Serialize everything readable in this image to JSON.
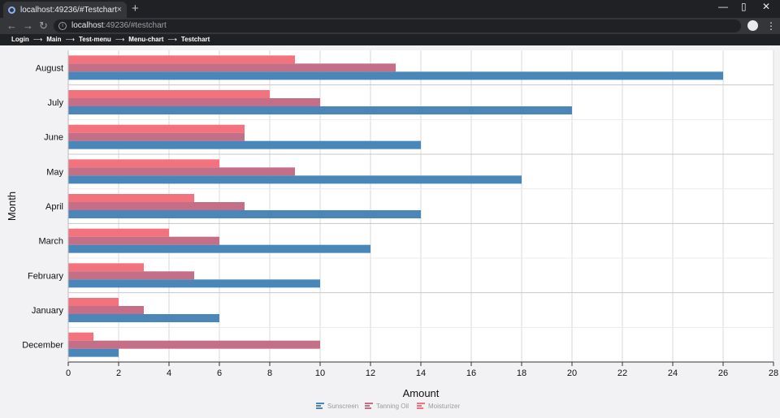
{
  "browser": {
    "tab_title": "localhost:49236/#Testchart",
    "tab_close": "×",
    "new_tab": "+",
    "url_host": "localhost",
    "url_rest": ":49236/#testchart",
    "back": "←",
    "forward": "→",
    "reload": "↻",
    "minimize": "—",
    "maximize": "▯",
    "close": "✕",
    "star": "☆",
    "menu": "⋮"
  },
  "breadcrumb": {
    "items": [
      "Login",
      "Main",
      "Test-menu",
      "Menu-chart",
      "Testchart"
    ],
    "separator": "⟶"
  },
  "colors": {
    "sunscreen": "#4a86b8",
    "tanning_oil": "#c46e87",
    "moisturizer": "#f2727e"
  },
  "chart_data": {
    "type": "bar",
    "orientation": "horizontal",
    "categories": [
      "August",
      "July",
      "June",
      "May",
      "April",
      "March",
      "February",
      "January",
      "December"
    ],
    "series": [
      {
        "name": "Sunscreen",
        "values": [
          26,
          20,
          14,
          18,
          14,
          12,
          10,
          6,
          2
        ]
      },
      {
        "name": "Tanning Oil",
        "values": [
          13,
          10,
          7,
          9,
          7,
          6,
          5,
          3,
          10
        ]
      },
      {
        "name": "Moisturizer",
        "values": [
          9,
          8,
          7,
          6,
          5,
          4,
          3,
          2,
          1
        ]
      }
    ],
    "xlabel": "Amount",
    "ylabel": "Month",
    "xlim": [
      0,
      28
    ],
    "xticks": [
      0,
      2,
      4,
      6,
      8,
      10,
      12,
      14,
      16,
      18,
      20,
      22,
      24,
      26,
      28
    ],
    "grid": true,
    "legend": "bottom-center"
  }
}
